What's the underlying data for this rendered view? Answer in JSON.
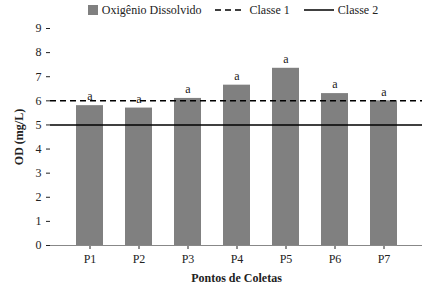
{
  "chart_data": {
    "type": "bar",
    "categories": [
      "P1",
      "P2",
      "P3",
      "P4",
      "P5",
      "P6",
      "P7"
    ],
    "series": [
      {
        "name": "Oxigênio Dissolvido",
        "color": "#808080",
        "values": [
          5.8,
          5.7,
          6.1,
          6.65,
          7.35,
          6.3,
          6.0
        ]
      }
    ],
    "annotations": [
      "a",
      "a",
      "a",
      "a",
      "a",
      "a",
      "a"
    ],
    "reference_lines": [
      {
        "name": "Classe 1",
        "value": 6,
        "color": "#000000",
        "line_style": "dashed"
      },
      {
        "name": "Classe 2",
        "value": 5,
        "color": "#000000",
        "line_style": "solid"
      }
    ],
    "x_label": "Pontos de Coletas",
    "y_label": "OD (mg/L)",
    "ylim": [
      0,
      9
    ],
    "yticks": [
      0,
      1,
      2,
      3,
      4,
      5,
      6,
      7,
      8,
      9
    ],
    "grid": false,
    "legend": "top"
  }
}
